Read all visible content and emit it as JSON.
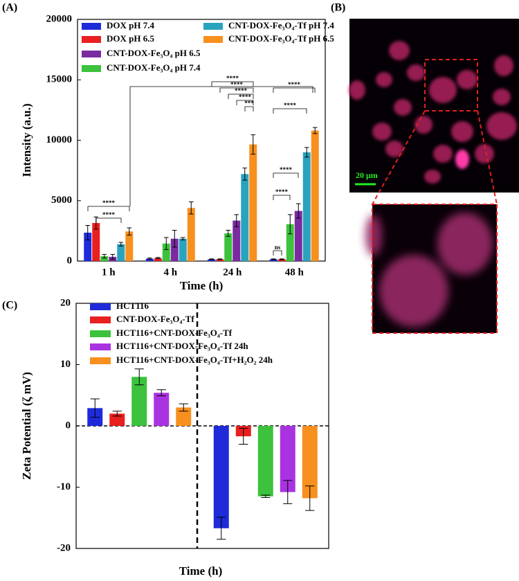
{
  "chart_data": [
    {
      "type": "bar",
      "panel": "(A)",
      "x_label": "Time (h)",
      "y_label": "Intensity (a.u.)",
      "categories": [
        "1 h",
        "4 h",
        "24 h",
        "48 h"
      ],
      "ylim": [
        0,
        20000
      ],
      "yticks": [
        0,
        5000,
        10000,
        15000,
        20000
      ],
      "series": [
        {
          "name": "DOX pH 7.4",
          "color": "#1f2bd9",
          "values": [
            2350,
            200,
            150,
            150
          ],
          "errors": [
            600,
            50,
            30,
            30
          ]
        },
        {
          "name": "DOX pH 6.5",
          "color": "#e8201f",
          "values": [
            3150,
            250,
            150,
            150
          ],
          "errors": [
            500,
            50,
            30,
            30
          ]
        },
        {
          "name": "CNT-DOX-Fe₃O₄ pH 7.4",
          "color": "#3cc23c",
          "values": [
            400,
            1450,
            2300,
            3050
          ],
          "errors": [
            150,
            500,
            250,
            800
          ]
        },
        {
          "name": "CNT-DOX-Fe₃O₄ pH 6.5",
          "color": "#7b2aa0",
          "values": [
            350,
            1850,
            3350,
            4150
          ],
          "errors": [
            200,
            700,
            500,
            600
          ]
        },
        {
          "name": "CNT-DOX-Fe₃O₄-Tf pH 7.4",
          "color": "#2aa3bf",
          "values": [
            1400,
            1850,
            7200,
            9000
          ],
          "errors": [
            150,
            100,
            500,
            400
          ]
        },
        {
          "name": "CNT-DOX-Fe₃O₄-Tf pH 6.5",
          "color": "#f7901e",
          "values": [
            2450,
            4400,
            9650,
            10800
          ],
          "errors": [
            300,
            500,
            800,
            250
          ]
        }
      ],
      "annotations": [
        "****",
        "****",
        "****",
        "****",
        "****",
        "****",
        "***",
        "****",
        "****",
        "****",
        "****",
        "ns"
      ]
    },
    {
      "type": "bar",
      "panel": "(C)",
      "x_label": "Time (h)",
      "y_label": "Zeta Potential (ζ mV)",
      "categories": [
        null,
        null
      ],
      "ylim": [
        -20,
        20
      ],
      "yticks": [
        -20,
        -10,
        0,
        10,
        20
      ],
      "series": [
        {
          "name": "HCT116",
          "color": "#1f2bd9",
          "values": [
            2.9,
            -16.7
          ],
          "errors": [
            1.5,
            1.8
          ]
        },
        {
          "name": "CNT-DOX-Fe₃O₄-Tf",
          "color": "#e8201f",
          "values": [
            2.0,
            -1.7
          ],
          "errors": [
            0.4,
            1.3
          ]
        },
        {
          "name": "HCT116+CNT-DOX-Fe₃O₄-Tf",
          "color": "#3cc23c",
          "values": [
            8.0,
            -11.5
          ],
          "errors": [
            1.3,
            0.2
          ]
        },
        {
          "name": "HCT116+CNT-DOX-Fe₃O₄-Tf 24h",
          "color": "#a933e0",
          "values": [
            5.4,
            -10.8
          ],
          "errors": [
            0.5,
            1.9
          ]
        },
        {
          "name": "HCT116+CNT-DOX-Fe₃O₄-Tf+H₂O₂ 24h",
          "color": "#f7901e",
          "values": [
            3.0,
            -11.8
          ],
          "errors": [
            0.6,
            2.0
          ]
        }
      ]
    }
  ],
  "image": {
    "panel": "(B)",
    "scale_bar": "20 μm"
  }
}
